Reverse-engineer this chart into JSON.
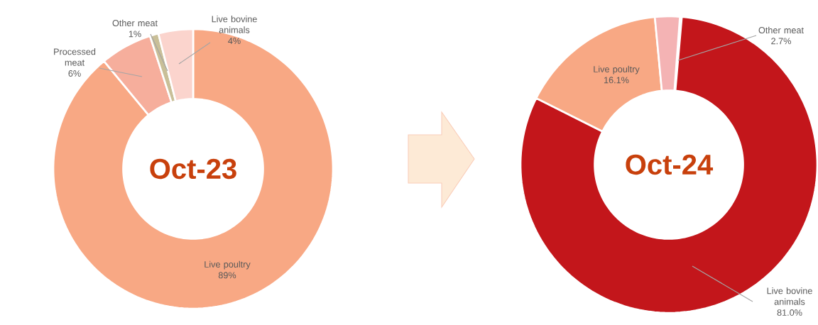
{
  "chart_data": [
    {
      "type": "donut",
      "title": "Oct-23",
      "categories": [
        "Live poultry",
        "Processed meat",
        "Other meat",
        "Live bovine animals"
      ],
      "values": [
        89,
        6,
        1,
        4
      ],
      "value_labels": [
        "89%",
        "6%",
        "1%",
        "4%"
      ],
      "colors": [
        "#f8a884",
        "#f6ae9c",
        "#c9bf98",
        "#fbd4cd"
      ]
    },
    {
      "type": "donut",
      "title": "Oct-24",
      "categories": [
        "Live bovine animals",
        "Live poultry",
        "Other meat"
      ],
      "values": [
        81.0,
        16.1,
        2.7
      ],
      "value_labels": [
        "81.0%",
        "16.1%",
        "2.7%"
      ],
      "colors": [
        "#c3161b",
        "#f8a884",
        "#f4b3b4"
      ]
    }
  ]
}
